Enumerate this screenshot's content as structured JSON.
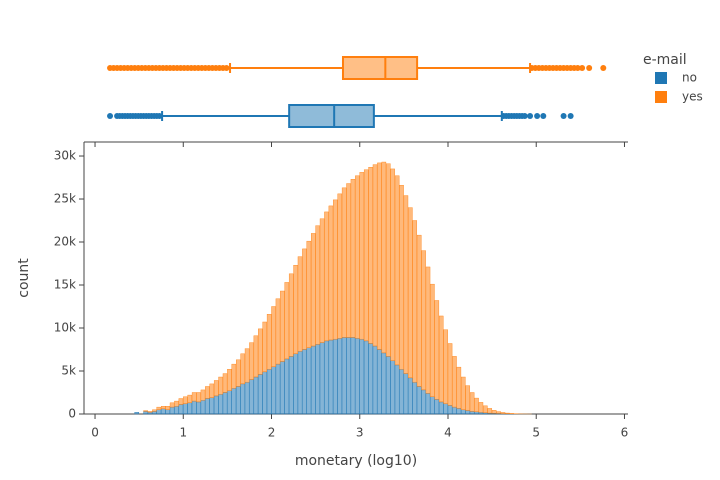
{
  "chart_data": {
    "type": "histogram",
    "barmode": "stack",
    "xlabel": "monetary (log10)",
    "ylabel": "count",
    "legend_title": "e-mail",
    "xlim": [
      -0.125,
      6.04
    ],
    "xticks": [
      0,
      1,
      2,
      3,
      4,
      5,
      6
    ],
    "ylim": [
      0,
      30700
    ],
    "yticks": [
      0,
      {
        "value": 5000,
        "label": "5k"
      },
      {
        "value": 10000,
        "label": "10k"
      },
      {
        "value": 15000,
        "label": "15k"
      },
      {
        "value": 20000,
        "label": "20k"
      },
      {
        "value": 25000,
        "label": "25k"
      },
      {
        "value": 30000,
        "label": "30k"
      }
    ],
    "bins": [
      0.45,
      0.5,
      0.55,
      0.6,
      0.65,
      0.7,
      0.75,
      0.8,
      0.85,
      0.9,
      0.95,
      1,
      1.05,
      1.1,
      1.15,
      1.2,
      1.25,
      1.3,
      1.35,
      1.4,
      1.45,
      1.5,
      1.55,
      1.6,
      1.65,
      1.7,
      1.75,
      1.8,
      1.85,
      1.9,
      1.95,
      2,
      2.05,
      2.1,
      2.15,
      2.2,
      2.25,
      2.3,
      2.35,
      2.4,
      2.45,
      2.5,
      2.55,
      2.6,
      2.65,
      2.7,
      2.75,
      2.8,
      2.85,
      2.9,
      2.95,
      3,
      3.05,
      3.1,
      3.15,
      3.2,
      3.25,
      3.3,
      3.35,
      3.4,
      3.45,
      3.5,
      3.55,
      3.6,
      3.65,
      3.7,
      3.75,
      3.8,
      3.85,
      3.9,
      3.95,
      4,
      4.05,
      4.1,
      4.15,
      4.2,
      4.25,
      4.3,
      4.35,
      4.4,
      4.45,
      4.5,
      4.55,
      4.6,
      4.65,
      4.7,
      4.75,
      4.8,
      4.85,
      4.9,
      4.95
    ],
    "series": [
      {
        "name": "no",
        "color": "#1f77b4",
        "values": [
          200,
          0,
          300,
          200,
          300,
          500,
          600,
          500,
          800,
          900,
          1100,
          1200,
          1300,
          1500,
          1400,
          1600,
          1800,
          1900,
          2100,
          2300,
          2500,
          2700,
          3000,
          3200,
          3500,
          3700,
          4000,
          4300,
          4600,
          4900,
          5200,
          5500,
          5800,
          6100,
          6400,
          6700,
          7000,
          7300,
          7500,
          7700,
          7900,
          8100,
          8300,
          8500,
          8600,
          8700,
          8800,
          8900,
          8900,
          8900,
          8800,
          8700,
          8500,
          8200,
          7900,
          7500,
          7100,
          6700,
          6200,
          5700,
          5200,
          4700,
          4200,
          3700,
          3200,
          2800,
          2400,
          2000,
          1700,
          1400,
          1200,
          1000,
          800,
          650,
          500,
          400,
          300,
          250,
          200,
          150,
          100,
          80,
          60,
          40,
          30,
          20,
          10,
          5,
          3,
          1
        ],
        "box": {
          "lower_whisker": 0.76,
          "q1": 2.2,
          "median": 2.71,
          "q3": 3.16,
          "upper_whisker": 4.61,
          "outliers": [
            0.17,
            0.25,
            0.28,
            0.31,
            0.34,
            0.37,
            0.4,
            0.43,
            0.46,
            0.49,
            0.52,
            0.55,
            0.58,
            0.61,
            0.64,
            0.67,
            0.7,
            0.73,
            4.63,
            4.66,
            4.69,
            4.72,
            4.75,
            4.78,
            4.81,
            4.84,
            4.87,
            4.93,
            5.01,
            5.08,
            5.31,
            5.39
          ]
        }
      },
      {
        "name": "yes",
        "color": "#ff7f0e",
        "values": [
          0,
          0,
          100,
          100,
          200,
          300,
          300,
          400,
          500,
          600,
          700,
          800,
          900,
          1000,
          1100,
          1200,
          1400,
          1600,
          1800,
          2000,
          2200,
          2500,
          2800,
          3100,
          3500,
          3900,
          4300,
          4800,
          5300,
          5800,
          6400,
          7000,
          7600,
          8200,
          8900,
          9600,
          10300,
          11000,
          11700,
          12400,
          13100,
          13800,
          14400,
          15000,
          15600,
          16200,
          16800,
          17400,
          17900,
          18400,
          18900,
          19400,
          19900,
          20500,
          21100,
          21700,
          22200,
          22400,
          22300,
          22000,
          21400,
          20700,
          19800,
          18800,
          17600,
          16200,
          14700,
          13100,
          11500,
          10000,
          8600,
          7200,
          5900,
          4800,
          3800,
          2900,
          2200,
          1600,
          1150,
          800,
          550,
          350,
          220,
          140,
          80,
          45,
          25,
          12,
          6,
          2
        ],
        "box": {
          "lower_whisker": 1.53,
          "q1": 2.81,
          "median": 3.29,
          "q3": 3.65,
          "upper_whisker": 4.93,
          "outliers": [
            0.17,
            0.21,
            0.25,
            0.29,
            0.33,
            0.37,
            0.41,
            0.45,
            0.49,
            0.53,
            0.57,
            0.61,
            0.65,
            0.69,
            0.73,
            0.77,
            0.81,
            0.85,
            0.89,
            0.93,
            0.97,
            1.01,
            1.05,
            1.09,
            1.13,
            1.17,
            1.21,
            1.25,
            1.29,
            1.33,
            1.37,
            1.41,
            1.45,
            1.49,
            4.95,
            4.99,
            5.03,
            5.07,
            5.11,
            5.15,
            5.19,
            5.23,
            5.27,
            5.31,
            5.35,
            5.39,
            5.43,
            5.47,
            5.52,
            5.6,
            5.76
          ]
        }
      }
    ]
  }
}
